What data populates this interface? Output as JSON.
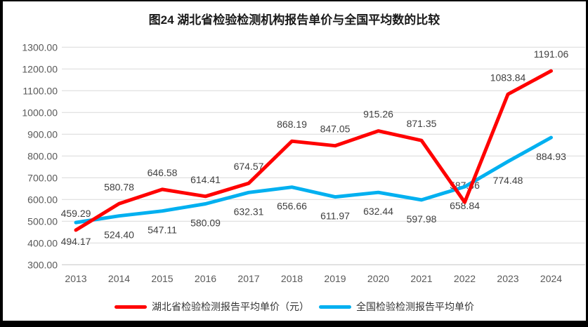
{
  "title": "图24 湖北省检验检测机构报告单价与全国平均数的比较",
  "chart_data": {
    "type": "line",
    "title": "图24 湖北省检验检测机构报告单价与全国平均数的比较",
    "categories": [
      "2013",
      "2014",
      "2015",
      "2016",
      "2017",
      "2018",
      "2019",
      "2020",
      "2021",
      "2022",
      "2023",
      "2024"
    ],
    "series": [
      {
        "name": "湖北省检验检测报告平均单价（元）",
        "color": "#FF0000",
        "label_position": "above",
        "values": [
          459.29,
          580.78,
          646.58,
          614.41,
          674.57,
          868.19,
          847.05,
          915.26,
          871.35,
          587.46,
          1083.84,
          1191.06
        ]
      },
      {
        "name": "全国检验检测报告平均单价",
        "color": "#00B0F0",
        "label_position": "below",
        "values": [
          494.17,
          524.4,
          547.11,
          580.09,
          632.31,
          656.66,
          611.97,
          632.44,
          597.98,
          658.84,
          774.48,
          884.93
        ]
      }
    ],
    "ylim": [
      300,
      1300
    ],
    "ytick_step": 100,
    "value_format": "0.00",
    "grid": true,
    "legend_position": "bottom",
    "xlabel": "",
    "ylabel": ""
  },
  "colors": {
    "grid": "#D9D9D9",
    "axis_line": "#C6C6C6",
    "tick_text": "#595959",
    "data_label_text": "#404040",
    "title_text": "#1A1A1A",
    "frame": "#000000",
    "background": "#FFFFFF"
  }
}
